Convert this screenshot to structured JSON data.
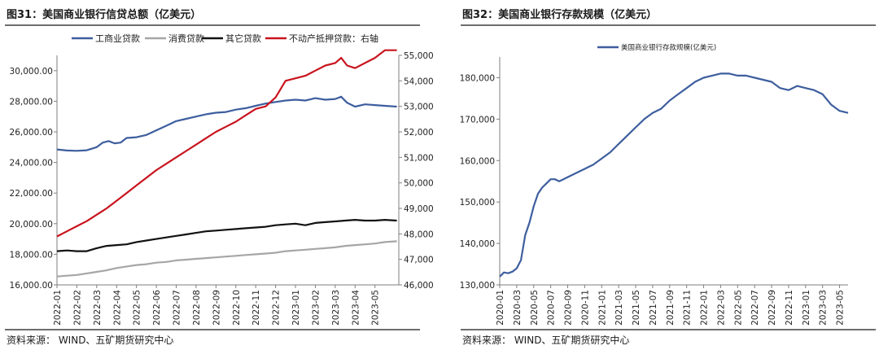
{
  "panels": {
    "left": {
      "title": "图31：美国商业银行信贷总额（亿美元）",
      "source": "资料来源： WIND、五矿期货研究中心"
    },
    "right": {
      "title": "图32：美国商业银行存款规模（亿美元）",
      "source": "资料来源： WIND、五矿期货研究中心"
    }
  },
  "chart_data": [
    {
      "type": "line",
      "title": "",
      "xlabel": "",
      "ylabel": "",
      "x_tick_labels": [
        "2022-01",
        "2022-02",
        "2022-03",
        "2022-04",
        "2022-05",
        "2022-06",
        "2022-07",
        "2022-08",
        "2022-09",
        "2022-10",
        "2022-11",
        "2022-12",
        "2023-01",
        "2023-02",
        "2023-03",
        "2023-04",
        "2023-05"
      ],
      "x_range": [
        0,
        17.2
      ],
      "ylim_left": [
        16000,
        31000
      ],
      "yticks_left": [
        16000,
        18000,
        20000,
        22000,
        24000,
        26000,
        28000,
        30000
      ],
      "ytick_labels_left": [
        "16,000.00",
        "18,000.00",
        "20,000.00",
        "22,000.00",
        "24,000.00",
        "26,000.00",
        "28,000.00",
        "30,000.00"
      ],
      "ylim_right": [
        46000,
        55000
      ],
      "yticks_right": [
        46000,
        47000,
        48000,
        49000,
        50000,
        51000,
        52000,
        53000,
        54000,
        55000
      ],
      "ytick_labels_right": [
        "46,000",
        "47,000",
        "48,000",
        "49,000",
        "50,000",
        "51,000",
        "52,000",
        "53,000",
        "54,000",
        "55,000"
      ],
      "legend_position": "top",
      "grid": false,
      "series": [
        {
          "name": "工商业贷款",
          "color": "#3e5e9e",
          "axis": "left",
          "x": [
            0,
            0.5,
            1,
            1.5,
            2,
            2.3,
            2.6,
            2.9,
            3.2,
            3.5,
            4,
            4.5,
            5,
            5.5,
            6,
            6.5,
            7,
            7.5,
            8,
            8.5,
            9,
            9.5,
            10,
            10.5,
            11,
            11.5,
            12,
            12.5,
            13,
            13.5,
            14,
            14.3,
            14.6,
            15,
            15.5,
            16,
            16.5,
            17.1
          ],
          "y": [
            24850,
            24780,
            24760,
            24800,
            25000,
            25300,
            25400,
            25250,
            25300,
            25600,
            25650,
            25800,
            26100,
            26400,
            26700,
            26850,
            27000,
            27150,
            27250,
            27300,
            27450,
            27550,
            27700,
            27850,
            27950,
            28050,
            28100,
            28050,
            28200,
            28100,
            28150,
            28300,
            27900,
            27650,
            27800,
            27750,
            27700,
            27650
          ]
        },
        {
          "name": "消费贷款",
          "color": "#a6a6a6",
          "axis": "left",
          "x": [
            0,
            0.5,
            1,
            1.5,
            2,
            2.5,
            3,
            3.5,
            4,
            4.5,
            5,
            5.5,
            6,
            6.5,
            7,
            7.5,
            8,
            8.5,
            9,
            9.5,
            10,
            10.5,
            11,
            11.5,
            12,
            12.5,
            13,
            13.5,
            14,
            14.5,
            15,
            15.5,
            16,
            16.5,
            17.1
          ],
          "y": [
            16550,
            16600,
            16650,
            16750,
            16850,
            16950,
            17100,
            17200,
            17300,
            17350,
            17450,
            17500,
            17600,
            17650,
            17700,
            17750,
            17800,
            17850,
            17900,
            17950,
            18000,
            18050,
            18100,
            18200,
            18250,
            18300,
            18350,
            18400,
            18450,
            18550,
            18600,
            18650,
            18700,
            18800,
            18850
          ]
        },
        {
          "name": "其它贷款",
          "color": "#111111",
          "axis": "left",
          "x": [
            0,
            0.5,
            1,
            1.5,
            2,
            2.5,
            3,
            3.5,
            4,
            4.5,
            5,
            5.5,
            6,
            6.5,
            7,
            7.5,
            8,
            8.5,
            9,
            9.5,
            10,
            10.5,
            11,
            11.5,
            12,
            12.5,
            13,
            13.5,
            14,
            14.5,
            15,
            15.5,
            16,
            16.5,
            17.1
          ],
          "y": [
            18200,
            18250,
            18200,
            18200,
            18400,
            18550,
            18600,
            18650,
            18800,
            18900,
            19000,
            19100,
            19200,
            19300,
            19400,
            19500,
            19550,
            19600,
            19650,
            19700,
            19750,
            19800,
            19900,
            19950,
            20000,
            19900,
            20050,
            20100,
            20150,
            20200,
            20250,
            20200,
            20200,
            20250,
            20200
          ]
        },
        {
          "name": "不动产抵押贷款：右轴",
          "color": "#c8141e",
          "axis": "right",
          "x": [
            0,
            0.5,
            1,
            1.5,
            2,
            2.5,
            3,
            3.5,
            4,
            4.5,
            5,
            5.5,
            6,
            6.5,
            7,
            7.5,
            8,
            8.5,
            9,
            9.5,
            10,
            10.5,
            11,
            11.5,
            12,
            12.5,
            13,
            13.5,
            14,
            14.3,
            14.6,
            15,
            15.5,
            16,
            16.5,
            17.1
          ],
          "y": [
            47900,
            48100,
            48300,
            48500,
            48750,
            49000,
            49300,
            49600,
            49900,
            50200,
            50500,
            50750,
            51000,
            51250,
            51500,
            51750,
            52000,
            52200,
            52400,
            52650,
            52900,
            53000,
            53350,
            54000,
            54100,
            54200,
            54400,
            54600,
            54700,
            54900,
            54600,
            54500,
            54700,
            54900,
            55200,
            55200
          ]
        }
      ]
    },
    {
      "type": "line",
      "title": "",
      "xlabel": "",
      "ylabel": "",
      "x_tick_labels": [
        "2020-01",
        "2020-03",
        "2020-05",
        "2020-07",
        "2020-09",
        "2020-11",
        "2021-01",
        "2021-03",
        "2021-05",
        "2021-07",
        "2021-09",
        "2021-11",
        "2022-01",
        "2022-03",
        "2022-05",
        "2022-07",
        "2022-09",
        "2022-11",
        "2023-01",
        "2023-03",
        "2023-05"
      ],
      "x_range": [
        0,
        41
      ],
      "ylim": [
        130000,
        185000
      ],
      "yticks": [
        130000,
        140000,
        150000,
        160000,
        170000,
        180000
      ],
      "ytick_labels": [
        "130,000",
        "140,000",
        "150,000",
        "160,000",
        "170,000",
        "180,000"
      ],
      "legend_position": "top",
      "grid": false,
      "series": [
        {
          "name": "美国商业银行存款规模(亿美元)",
          "color": "#3e5e9e",
          "x": [
            0,
            0.5,
            1,
            1.5,
            2,
            2.5,
            3,
            3.5,
            4,
            4.5,
            5,
            5.5,
            6,
            6.5,
            7,
            7.5,
            8,
            8.5,
            9,
            9.5,
            10,
            10.5,
            11,
            12,
            13,
            14,
            15,
            16,
            17,
            18,
            19,
            20,
            21,
            22,
            23,
            24,
            25,
            26,
            27,
            28,
            29,
            30,
            31,
            32,
            33,
            34,
            35,
            36,
            37,
            38,
            39,
            40,
            41
          ],
          "y": [
            132000,
            133000,
            132800,
            133200,
            134000,
            136000,
            142000,
            145000,
            149000,
            152000,
            153500,
            154500,
            155500,
            155500,
            155000,
            155500,
            156000,
            156500,
            157000,
            157500,
            158000,
            158500,
            159000,
            160500,
            162000,
            164000,
            166000,
            168000,
            170000,
            171500,
            172500,
            174500,
            176000,
            177500,
            179000,
            180000,
            180500,
            181000,
            181000,
            180500,
            180500,
            180000,
            179500,
            179000,
            177500,
            177000,
            178000,
            177500,
            177000,
            176000,
            173500,
            172000,
            171500
          ]
        }
      ]
    }
  ]
}
